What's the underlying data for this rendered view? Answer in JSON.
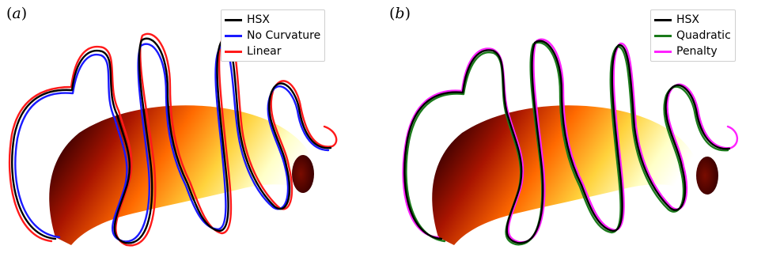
{
  "panel_a": {
    "label": "a",
    "legend": [
      {
        "name": "HSX",
        "color": "#000000"
      },
      {
        "name": "No Curvature",
        "color": "#1a1aff"
      },
      {
        "name": "Linear",
        "color": "#ff1a1a"
      }
    ]
  },
  "panel_b": {
    "label": "b",
    "legend": [
      {
        "name": "HSX",
        "color": "#000000"
      },
      {
        "name": "Quadratic",
        "color": "#1a7a1a"
      },
      {
        "name": "Penalty",
        "color": "#ff22ff"
      }
    ]
  },
  "surface_colormap": [
    "#000000",
    "#6b0000",
    "#d42a00",
    "#ff8c00",
    "#ffe040",
    "#ffffd0"
  ]
}
